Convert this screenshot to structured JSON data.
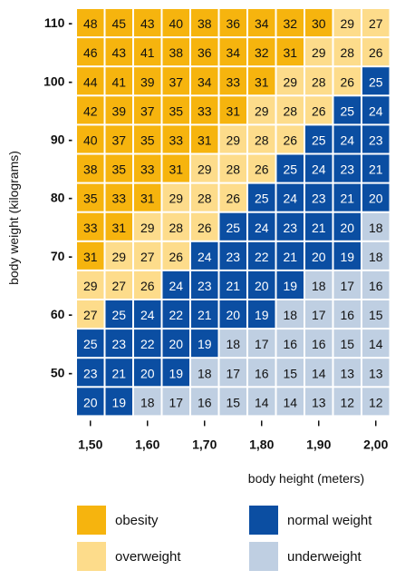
{
  "chart_data": {
    "type": "heatmap",
    "xlabel": "body height (meters)",
    "ylabel": "body weight (kilograms)",
    "x_tick_labels": [
      "1,50",
      "1,60",
      "1,70",
      "1,80",
      "1,90",
      "2,00"
    ],
    "y_tick_labels": [
      "110 -",
      "100 -",
      "90 -",
      "80 -",
      "70 -",
      "60 -",
      "50 -"
    ],
    "x_heights_m": [
      1.5,
      1.55,
      1.6,
      1.65,
      1.7,
      1.75,
      1.8,
      1.85,
      1.9,
      1.95,
      2.0
    ],
    "y_weights_kg": [
      110,
      105,
      100,
      95,
      90,
      85,
      80,
      75,
      70,
      65,
      60,
      55,
      50,
      45
    ],
    "values": [
      [
        48,
        45,
        43,
        40,
        38,
        36,
        34,
        32,
        30,
        29,
        27
      ],
      [
        46,
        43,
        41,
        38,
        36,
        34,
        32,
        31,
        29,
        28,
        26
      ],
      [
        44,
        41,
        39,
        37,
        34,
        33,
        31,
        29,
        28,
        26,
        25
      ],
      [
        42,
        39,
        37,
        35,
        33,
        31,
        29,
        28,
        26,
        25,
        24
      ],
      [
        40,
        37,
        35,
        33,
        31,
        29,
        28,
        26,
        25,
        24,
        23
      ],
      [
        38,
        35,
        33,
        31,
        29,
        28,
        26,
        25,
        24,
        23,
        21
      ],
      [
        35,
        33,
        31,
        29,
        28,
        26,
        25,
        24,
        23,
        21,
        20
      ],
      [
        33,
        31,
        29,
        28,
        26,
        25,
        24,
        23,
        21,
        20,
        18
      ],
      [
        31,
        29,
        27,
        26,
        24,
        23,
        22,
        21,
        20,
        19,
        18
      ],
      [
        29,
        27,
        26,
        24,
        23,
        21,
        20,
        19,
        18,
        17,
        16
      ],
      [
        27,
        25,
        24,
        22,
        21,
        20,
        19,
        18,
        17,
        16,
        15
      ],
      [
        25,
        23,
        22,
        20,
        19,
        18,
        17,
        16,
        16,
        15,
        14
      ],
      [
        23,
        21,
        20,
        19,
        18,
        17,
        16,
        15,
        14,
        13,
        13
      ],
      [
        20,
        19,
        18,
        17,
        16,
        15,
        14,
        14,
        13,
        12,
        12
      ]
    ],
    "categories": [
      [
        "o",
        "o",
        "o",
        "o",
        "o",
        "o",
        "o",
        "o",
        "o",
        "v",
        "v"
      ],
      [
        "o",
        "o",
        "o",
        "o",
        "o",
        "o",
        "o",
        "o",
        "v",
        "v",
        "v"
      ],
      [
        "o",
        "o",
        "o",
        "o",
        "o",
        "o",
        "o",
        "v",
        "v",
        "v",
        "n"
      ],
      [
        "o",
        "o",
        "o",
        "o",
        "o",
        "o",
        "v",
        "v",
        "v",
        "n",
        "n"
      ],
      [
        "o",
        "o",
        "o",
        "o",
        "o",
        "v",
        "v",
        "v",
        "n",
        "n",
        "n"
      ],
      [
        "o",
        "o",
        "o",
        "o",
        "v",
        "v",
        "v",
        "n",
        "n",
        "n",
        "n"
      ],
      [
        "o",
        "o",
        "o",
        "v",
        "v",
        "v",
        "n",
        "n",
        "n",
        "n",
        "n"
      ],
      [
        "o",
        "o",
        "v",
        "v",
        "v",
        "n",
        "n",
        "n",
        "n",
        "n",
        "u"
      ],
      [
        "o",
        "v",
        "v",
        "v",
        "n",
        "n",
        "n",
        "n",
        "n",
        "n",
        "u"
      ],
      [
        "v",
        "v",
        "v",
        "n",
        "n",
        "n",
        "n",
        "n",
        "u",
        "u",
        "u"
      ],
      [
        "v",
        "n",
        "n",
        "n",
        "n",
        "n",
        "n",
        "u",
        "u",
        "u",
        "u"
      ],
      [
        "n",
        "n",
        "n",
        "n",
        "n",
        "u",
        "u",
        "u",
        "u",
        "u",
        "u"
      ],
      [
        "n",
        "n",
        "n",
        "n",
        "u",
        "u",
        "u",
        "u",
        "u",
        "u",
        "u"
      ],
      [
        "n",
        "n",
        "u",
        "u",
        "u",
        "u",
        "u",
        "u",
        "u",
        "u",
        "u"
      ]
    ],
    "legend": [
      {
        "key": "o",
        "label": "obesity",
        "color": "#F6B40E",
        "text_color": "#111111"
      },
      {
        "key": "n",
        "label": "normal weight",
        "color": "#0B4EA2",
        "text_color": "#ffffff"
      },
      {
        "key": "v",
        "label": "overweight",
        "color": "#FDDC8B",
        "text_color": "#111111"
      },
      {
        "key": "u",
        "label": "underweight",
        "color": "#BFCFE2",
        "text_color": "#111111"
      }
    ]
  }
}
